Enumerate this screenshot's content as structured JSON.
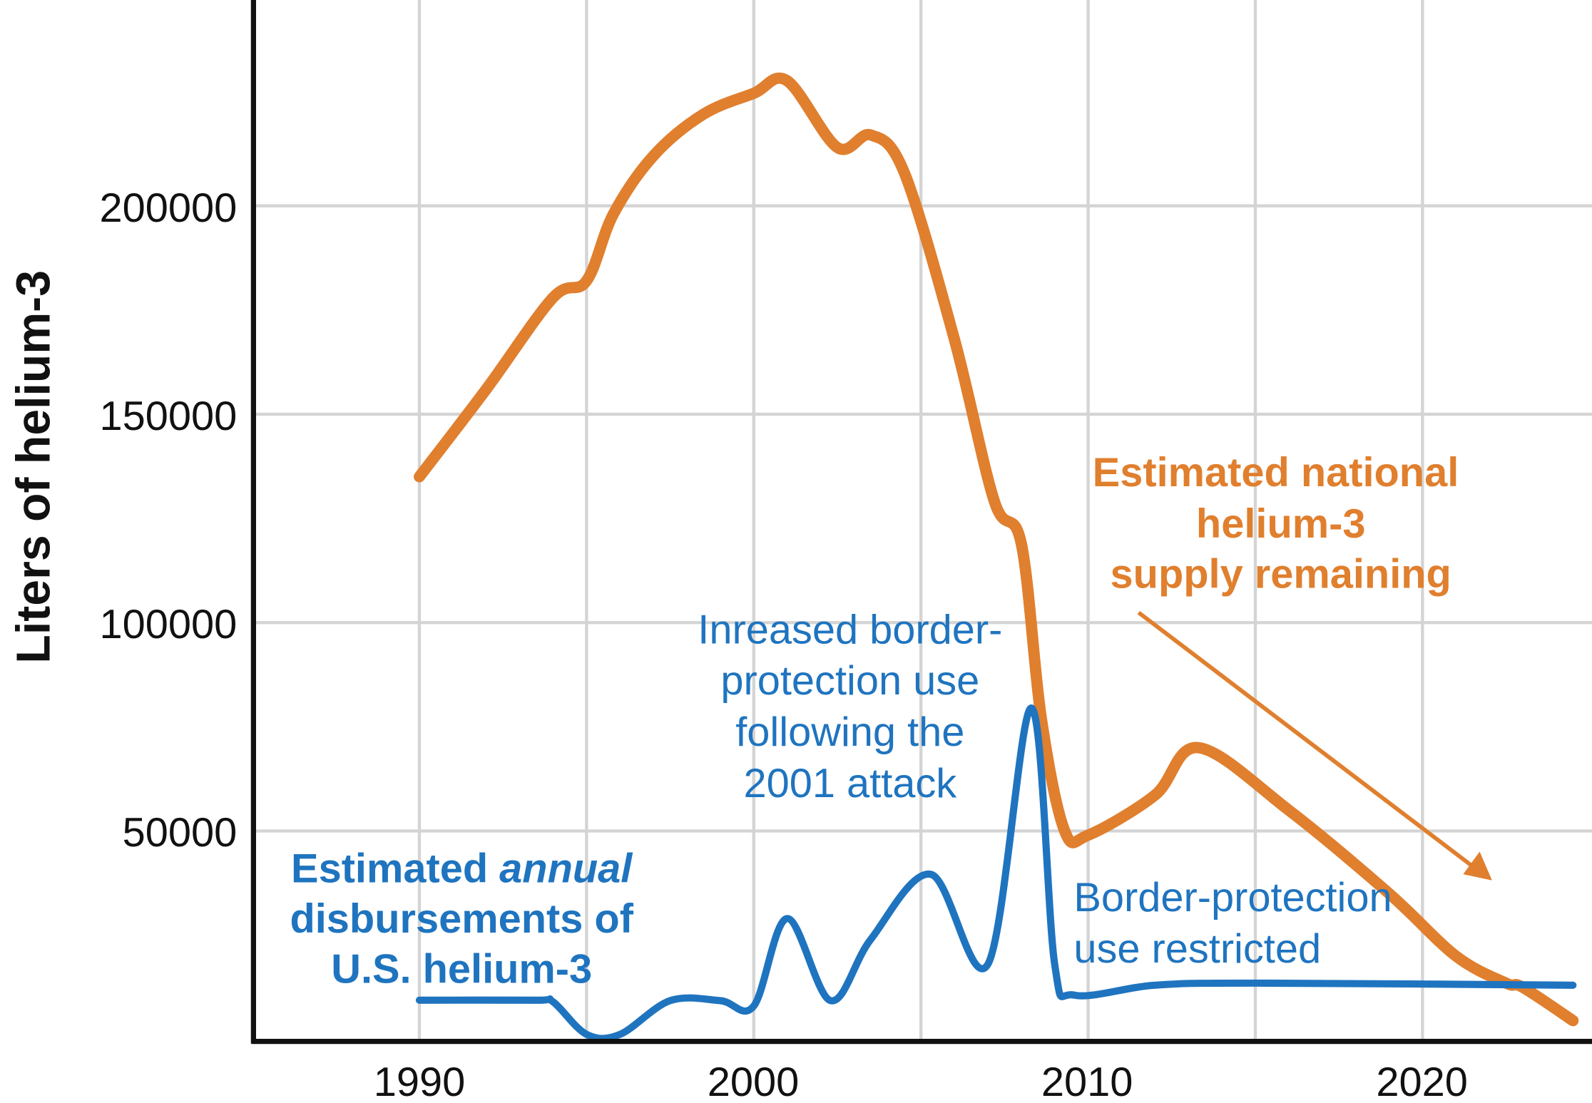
{
  "chart_data": {
    "type": "line",
    "title": "",
    "xlabel": "",
    "ylabel": "Liters of helium-3",
    "xlim": [
      1985,
      2025
    ],
    "ylim": [
      0,
      250000
    ],
    "x_ticks": [
      "1990",
      "2000",
      "2010",
      "2020"
    ],
    "y_ticks": [
      "50000",
      "100000",
      "150000",
      "200000"
    ],
    "grid": true,
    "series": [
      {
        "name": "Estimated national helium-3 supply remaining",
        "color": "#e07f2e",
        "points": [
          [
            1990,
            135000
          ],
          [
            1992,
            156000
          ],
          [
            1994,
            178000
          ],
          [
            1995,
            182000
          ],
          [
            1995.8,
            198000
          ],
          [
            1997,
            212000
          ],
          [
            1998.5,
            222000
          ],
          [
            2000,
            227000
          ],
          [
            2001,
            230000
          ],
          [
            2002.5,
            214000
          ],
          [
            2003.5,
            217000
          ],
          [
            2004.5,
            208000
          ],
          [
            2006,
            168000
          ],
          [
            2007.2,
            129000
          ],
          [
            2008,
            119000
          ],
          [
            2008.6,
            77000
          ],
          [
            2009.3,
            50000
          ],
          [
            2010,
            49000
          ],
          [
            2012,
            58600
          ],
          [
            2013.3,
            70000
          ],
          [
            2016,
            55000
          ],
          [
            2019,
            35000
          ],
          [
            2021,
            20000
          ],
          [
            2022.5,
            13500
          ],
          [
            2023,
            12500
          ],
          [
            2024.5,
            4500
          ]
        ]
      },
      {
        "name": "Estimated annual disbursements of U.S. helium-3",
        "color": "#1f74bf",
        "points": [
          [
            1990,
            9400
          ],
          [
            1993.5,
            9400
          ],
          [
            1994,
            9000
          ],
          [
            1995,
            1200
          ],
          [
            1996,
            1200
          ],
          [
            1997.5,
            9300
          ],
          [
            1999,
            9300
          ],
          [
            2000,
            8000
          ],
          [
            2001,
            29000
          ],
          [
            2002.3,
            9300
          ],
          [
            2003.5,
            24000
          ],
          [
            2005.3,
            39600
          ],
          [
            2007,
            18000
          ],
          [
            2008.3,
            79500
          ],
          [
            2009,
            18000
          ],
          [
            2009.6,
            10600
          ],
          [
            2012,
            13000
          ],
          [
            2015,
            13500
          ],
          [
            2024.5,
            13000
          ]
        ]
      }
    ],
    "annotations": {
      "supply": [
        "Estimated national",
        "helium-3",
        "supply remaining"
      ],
      "disbursements": {
        "line1_a": "Estimated ",
        "line1_b": "annual",
        "line2": "disbursements of",
        "line3": "U.S. helium-3"
      },
      "increase": [
        "Inreased border-",
        "protection use",
        "following the",
        "2001 attack"
      ],
      "restricted": [
        "Border-protection",
        "use restricted"
      ]
    }
  }
}
